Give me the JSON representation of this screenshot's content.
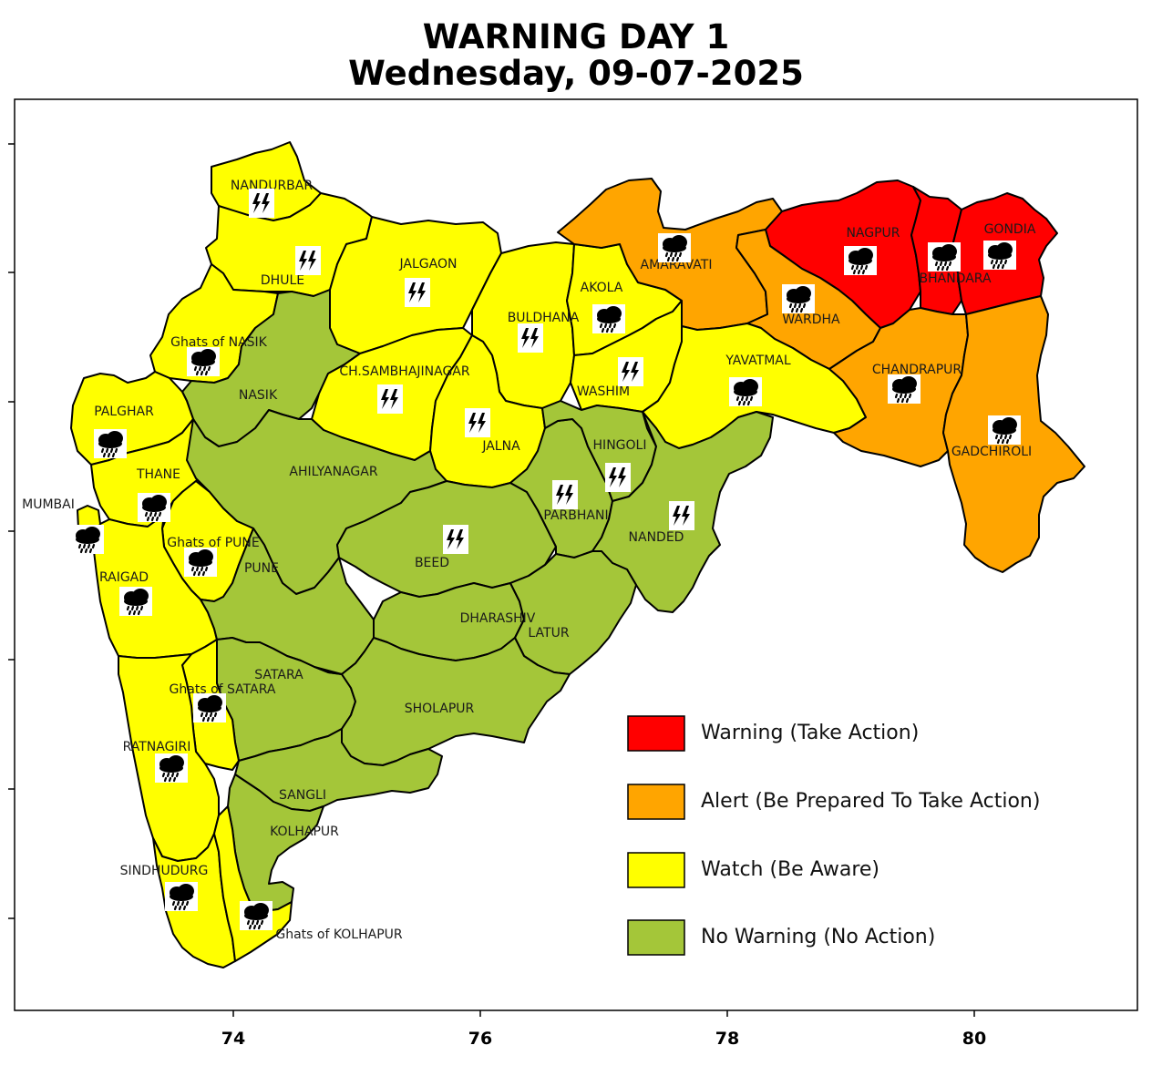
{
  "title": {
    "line1": "WARNING DAY 1",
    "line2": "Wednesday, 09-07-2025"
  },
  "colors": {
    "warning": "#ff0000",
    "alert": "#ffa500",
    "watch": "#ffff00",
    "no_warning": "#a4c639",
    "border": "#000000"
  },
  "legend": [
    {
      "label": "Warning (Take Action)",
      "color": "#ff0000"
    },
    {
      "label": "Alert (Be Prepared To Take Action)",
      "color": "#ffa500"
    },
    {
      "label": "Watch (Be Aware)",
      "color": "#ffff00"
    },
    {
      "label": "No Warning (No Action)",
      "color": "#a4c639"
    }
  ],
  "x_axis": {
    "ticks": [
      "74",
      "76",
      "78",
      "80"
    ]
  },
  "districts": [
    {
      "name": "NANDURBAR",
      "level": "watch",
      "icon": "thunderstorm-icon"
    },
    {
      "name": "DHULE",
      "level": "watch",
      "icon": "thunderstorm-icon"
    },
    {
      "name": "JALGAON",
      "level": "watch",
      "icon": "thunderstorm-icon"
    },
    {
      "name": "Ghats of NASIK",
      "level": "watch",
      "icon": "heavy-rain-icon"
    },
    {
      "name": "NASIK",
      "level": "no_warning",
      "icon": ""
    },
    {
      "name": "PALGHAR",
      "level": "watch",
      "icon": "heavy-rain-icon"
    },
    {
      "name": "THANE",
      "level": "watch",
      "icon": "heavy-rain-icon"
    },
    {
      "name": "MUMBAI",
      "level": "watch",
      "icon": "heavy-rain-icon"
    },
    {
      "name": "Ghats of PUNE",
      "level": "watch",
      "icon": "heavy-rain-icon"
    },
    {
      "name": "RAIGAD",
      "level": "watch",
      "icon": "heavy-rain-icon"
    },
    {
      "name": "PUNE",
      "level": "no_warning",
      "icon": ""
    },
    {
      "name": "CH.SAMBHAJINAGAR",
      "level": "watch",
      "icon": "thunderstorm-icon"
    },
    {
      "name": "AHILYANAGAR",
      "level": "no_warning",
      "icon": ""
    },
    {
      "name": "BULDHANA",
      "level": "watch",
      "icon": "thunderstorm-icon"
    },
    {
      "name": "JALNA",
      "level": "watch",
      "icon": "thunderstorm-icon"
    },
    {
      "name": "AKOLA",
      "level": "watch",
      "icon": "heavy-rain-icon"
    },
    {
      "name": "WASHIM",
      "level": "watch",
      "icon": "thunderstorm-icon"
    },
    {
      "name": "AMARAVATI",
      "level": "alert",
      "icon": "heavy-rain-icon"
    },
    {
      "name": "WARDHA",
      "level": "alert",
      "icon": "heavy-rain-icon"
    },
    {
      "name": "NAGPUR",
      "level": "warning",
      "icon": "heavy-rain-icon"
    },
    {
      "name": "BHANDARA",
      "level": "warning",
      "icon": "heavy-rain-icon"
    },
    {
      "name": "GONDIA",
      "level": "warning",
      "icon": "heavy-rain-icon"
    },
    {
      "name": "YAVATMAL",
      "level": "watch",
      "icon": "heavy-rain-icon"
    },
    {
      "name": "CHANDRAPUR",
      "level": "alert",
      "icon": "heavy-rain-icon"
    },
    {
      "name": "GADCHIROLI",
      "level": "alert",
      "icon": "heavy-rain-icon"
    },
    {
      "name": "HINGOLI",
      "level": "no_warning",
      "icon": "thunderstorm-icon"
    },
    {
      "name": "PARBHANI",
      "level": "no_warning",
      "icon": "thunderstorm-icon"
    },
    {
      "name": "NANDED",
      "level": "no_warning",
      "icon": "thunderstorm-icon"
    },
    {
      "name": "BEED",
      "level": "no_warning",
      "icon": "thunderstorm-icon"
    },
    {
      "name": "DHARASHIV",
      "level": "no_warning",
      "icon": ""
    },
    {
      "name": "LATUR",
      "level": "no_warning",
      "icon": ""
    },
    {
      "name": "SATARA",
      "level": "no_warning",
      "icon": ""
    },
    {
      "name": "Ghats of SATARA",
      "level": "watch",
      "icon": "heavy-rain-icon"
    },
    {
      "name": "SHOLAPUR",
      "level": "no_warning",
      "icon": ""
    },
    {
      "name": "RATNAGIRI",
      "level": "watch",
      "icon": "heavy-rain-icon"
    },
    {
      "name": "SANGLI",
      "level": "no_warning",
      "icon": ""
    },
    {
      "name": "KOLHAPUR",
      "level": "no_warning",
      "icon": ""
    },
    {
      "name": "SINDHUDURG",
      "level": "watch",
      "icon": "heavy-rain-icon"
    },
    {
      "name": "Ghats of KOLHAPUR",
      "level": "watch",
      "icon": "heavy-rain-icon"
    }
  ]
}
